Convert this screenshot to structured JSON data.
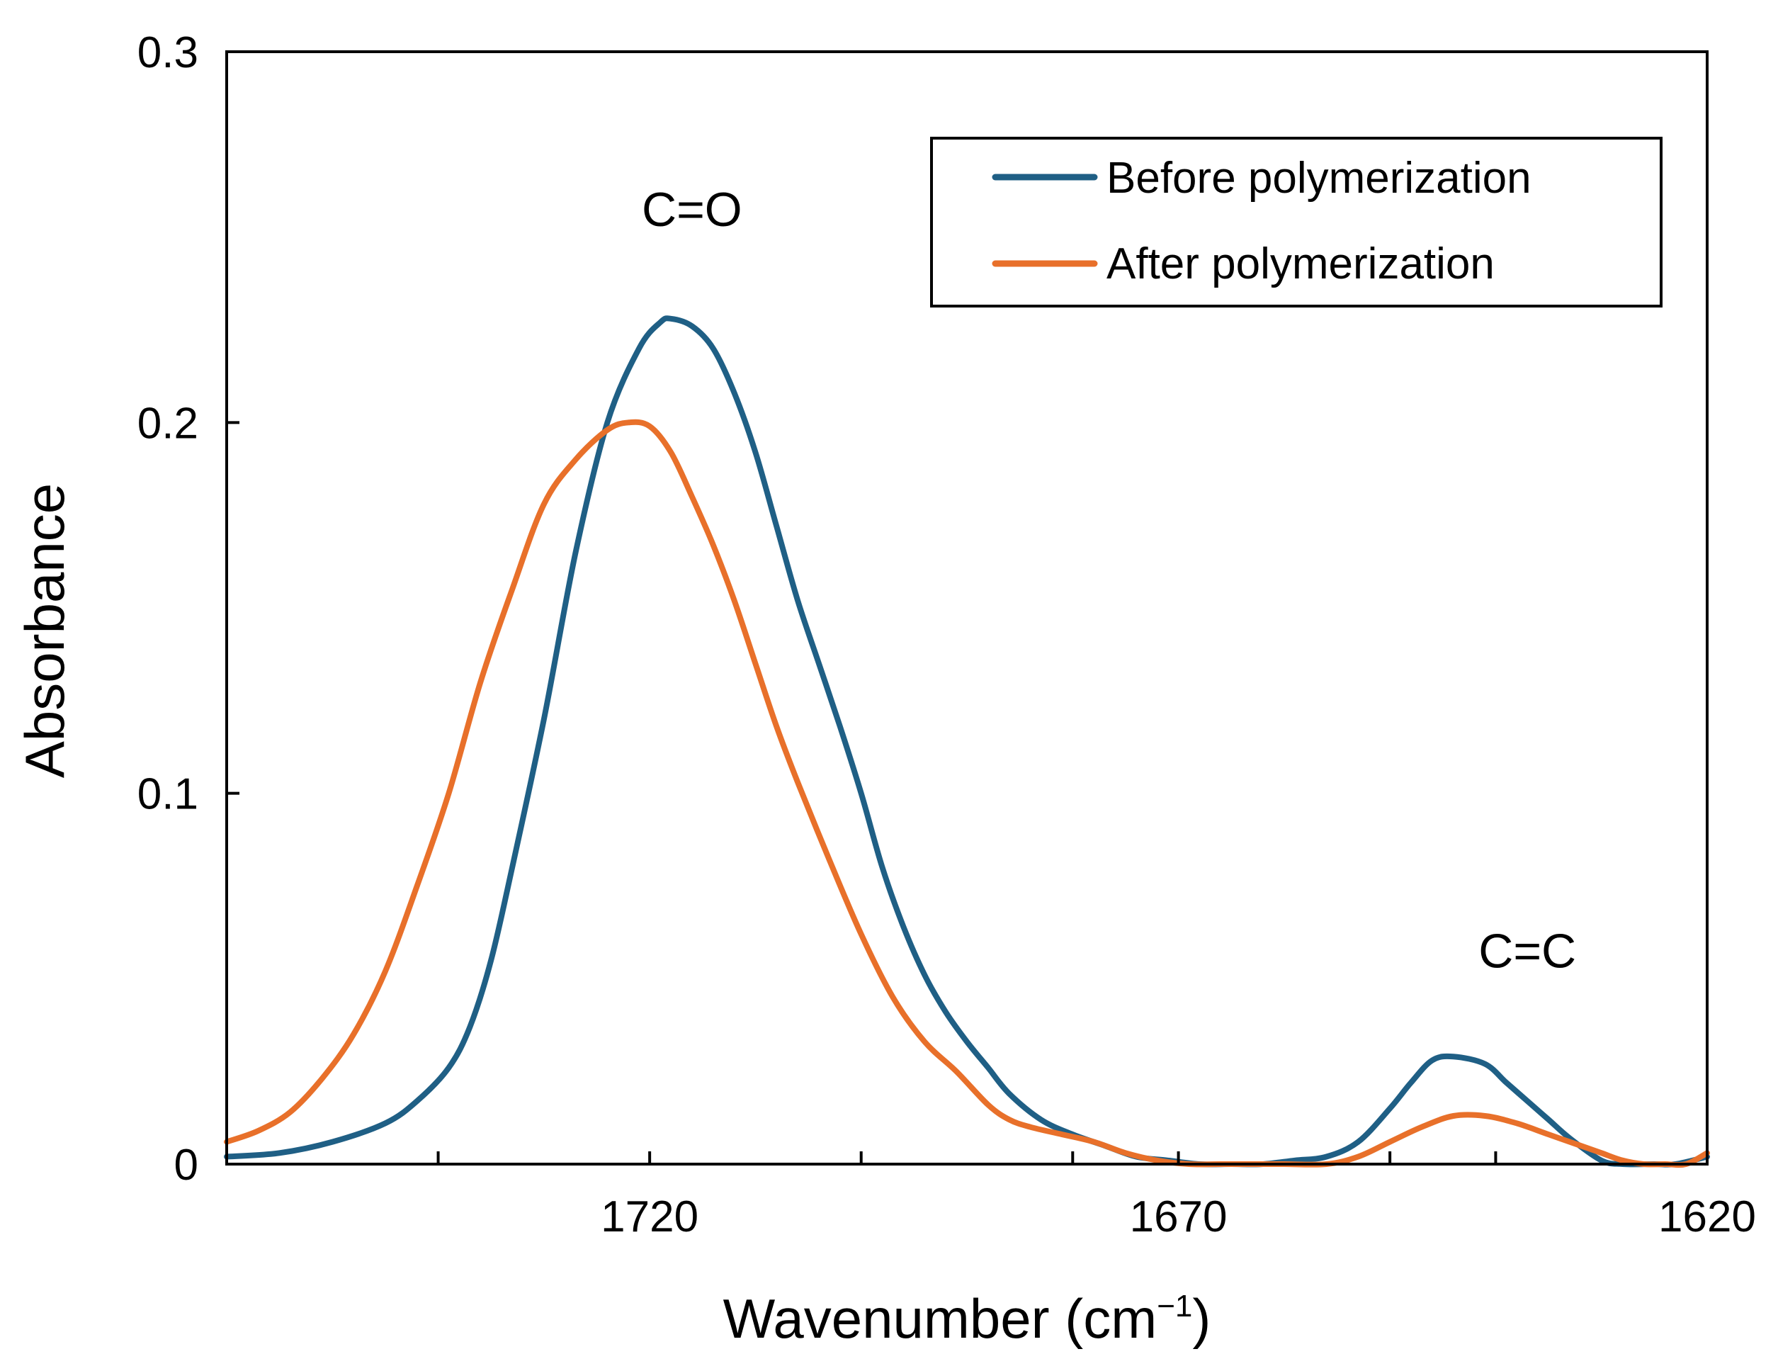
{
  "chart_data": {
    "type": "line",
    "title": "",
    "xlabel": "Wavenumber (cm",
    "xlabel_sup": "−1",
    "xlabel_close": ")",
    "ylabel": "Absorbance",
    "xlim": [
      1760,
      1620
    ],
    "ylim": [
      0,
      0.3
    ],
    "x_ticks": [
      1720,
      1670,
      1620
    ],
    "x_tick_labels": [
      "1720",
      "1670",
      "1620"
    ],
    "x_minor_ticks": [
      1740,
      1700,
      1680,
      1650,
      1640
    ],
    "y_ticks": [
      0,
      0.1,
      0.2,
      0.3
    ],
    "y_tick_labels": [
      "0",
      "0.1",
      "0.2",
      "0.3"
    ],
    "grid": false,
    "legend_position": "top-right",
    "annotations": [
      {
        "text": "C=O",
        "x": 1716,
        "y": 0.253
      },
      {
        "text": "C=C",
        "x": 1637,
        "y": 0.053
      }
    ],
    "series": [
      {
        "name": "Before polymerization",
        "color": "#1f5f85",
        "x": [
          1760,
          1755,
          1750,
          1745,
          1742,
          1739,
          1737,
          1735,
          1733,
          1730,
          1727,
          1724,
          1721,
          1719,
          1718,
          1716,
          1714,
          1712,
          1710,
          1708,
          1706,
          1704,
          1702,
          1700,
          1698,
          1696,
          1694,
          1692,
          1690,
          1688,
          1686,
          1683,
          1680,
          1677,
          1674,
          1671,
          1668,
          1665,
          1662,
          1659,
          1656,
          1653,
          1650,
          1648,
          1646,
          1644,
          1641,
          1639,
          1637,
          1635,
          1633,
          1630,
          1628,
          1625,
          1623,
          1620
        ],
        "y": [
          0.002,
          0.003,
          0.006,
          0.011,
          0.017,
          0.026,
          0.037,
          0.055,
          0.08,
          0.12,
          0.165,
          0.2,
          0.22,
          0.227,
          0.228,
          0.226,
          0.22,
          0.208,
          0.192,
          0.172,
          0.152,
          0.135,
          0.118,
          0.1,
          0.08,
          0.064,
          0.051,
          0.041,
          0.033,
          0.026,
          0.019,
          0.012,
          0.008,
          0.005,
          0.002,
          0.001,
          0,
          0,
          0,
          0.001,
          0.002,
          0.006,
          0.015,
          0.022,
          0.028,
          0.029,
          0.027,
          0.022,
          0.017,
          0.012,
          0.007,
          0.001,
          0,
          0,
          0,
          0.002
        ]
      },
      {
        "name": "After polymerization",
        "color": "#e8702a",
        "x": [
          1760,
          1757,
          1754,
          1751,
          1748,
          1745,
          1742,
          1739,
          1736,
          1733,
          1730,
          1727,
          1724,
          1722,
          1720,
          1718,
          1716,
          1714,
          1712,
          1710,
          1708,
          1706,
          1703,
          1700,
          1697,
          1694,
          1691,
          1688,
          1686,
          1684,
          1681,
          1678,
          1675,
          1672,
          1669,
          1666,
          1663,
          1660,
          1656,
          1653,
          1650,
          1647,
          1644,
          1641,
          1638,
          1635,
          1632,
          1630,
          1628,
          1626,
          1624,
          1622,
          1620
        ],
        "y": [
          0.006,
          0.009,
          0.014,
          0.023,
          0.035,
          0.052,
          0.075,
          0.1,
          0.13,
          0.155,
          0.178,
          0.19,
          0.198,
          0.2,
          0.199,
          0.192,
          0.18,
          0.167,
          0.152,
          0.135,
          0.118,
          0.103,
          0.082,
          0.062,
          0.045,
          0.033,
          0.025,
          0.016,
          0.012,
          0.01,
          0.008,
          0.006,
          0.003,
          0.001,
          0,
          0,
          0,
          0,
          0,
          0.002,
          0.006,
          0.01,
          0.013,
          0.013,
          0.011,
          0.008,
          0.005,
          0.003,
          0.001,
          0,
          0,
          0,
          0.003
        ]
      }
    ]
  }
}
